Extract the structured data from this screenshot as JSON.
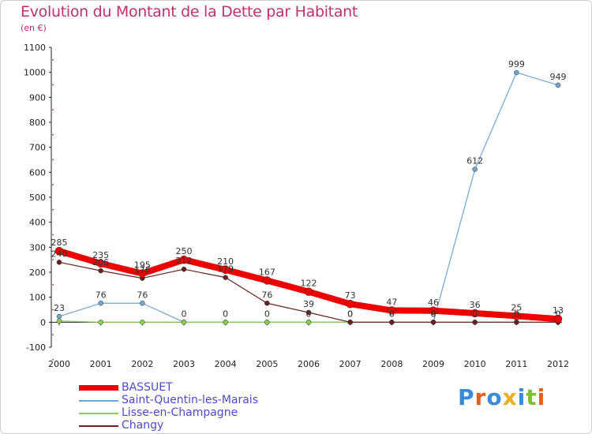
{
  "title": "Evolution du Montant de la Dette par Habitant",
  "subtitle": "(en €)",
  "logo": "Proxiti",
  "colors": {
    "title": "#c03070",
    "legend_text": "#4b4bd0",
    "axis": "#222222",
    "logo_letters": [
      "#3a8ad8",
      "#e06020",
      "#3a8ad8",
      "#e8b020",
      "#3a8ad8",
      "#80c030",
      "#e06020"
    ]
  },
  "chart_data": {
    "type": "line",
    "title": "Evolution du Montant de la Dette par Habitant",
    "ylabel": "(en €)",
    "xlabel": "",
    "x": [
      "2000",
      "2001",
      "2002",
      "2003",
      "2004",
      "2005",
      "2006",
      "2007",
      "2008",
      "2009",
      "2010",
      "2011",
      "2012"
    ],
    "ylim": [
      -100,
      1100
    ],
    "yticks": [
      -100,
      0,
      100,
      200,
      300,
      400,
      500,
      600,
      700,
      800,
      900,
      1000,
      1100
    ],
    "grid": false,
    "legend_position": "bottom-left",
    "series": [
      {
        "name": "BASSUET",
        "color": "#ee0000",
        "width": 8,
        "labels": true,
        "values": [
          285,
          235,
          195,
          250,
          210,
          167,
          122,
          73,
          47,
          46,
          36,
          25,
          13
        ]
      },
      {
        "name": "Saint-Quentin-les-Marais",
        "color": "#6fa5d4",
        "width": 1.2,
        "labels": true,
        "values": [
          23,
          76,
          76,
          0,
          0,
          0,
          0,
          0,
          0,
          0,
          612,
          999,
          949
        ]
      },
      {
        "name": "Lisse-en-Champagne",
        "color": "#8cd050",
        "width": 1.2,
        "labels": false,
        "values": [
          5,
          0,
          0,
          0,
          0,
          0,
          0,
          0,
          0,
          0,
          0,
          0,
          0
        ]
      },
      {
        "name": "Changy",
        "color": "#6b2020",
        "width": 1.2,
        "labels": true,
        "values": [
          240,
          206,
          176,
          212,
          179,
          76,
          39,
          0,
          0,
          0,
          0,
          0,
          0
        ]
      }
    ]
  }
}
